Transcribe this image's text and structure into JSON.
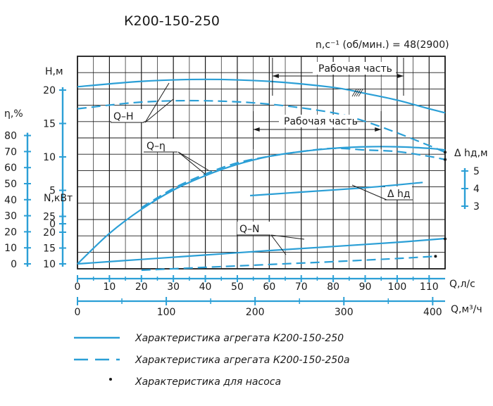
{
  "chart_data": {
    "type": "line",
    "title": "К200-150-250",
    "speed_label": "n,с⁻¹ (об/мин.) = 48(2900)",
    "working_zone_label": "Рабочая часть",
    "x_axis": {
      "label": "Q,л/с",
      "range": [
        0,
        115
      ],
      "ticks": [
        0,
        10,
        20,
        30,
        40,
        50,
        60,
        70,
        80,
        90,
        100,
        110
      ]
    },
    "x2_axis": {
      "label": "Q,м³/ч",
      "range": [
        0,
        414
      ],
      "ticks": [
        0,
        100,
        200,
        300,
        400
      ]
    },
    "axes": {
      "H": {
        "label": "Н,м",
        "ticks": [
          0,
          5,
          10,
          15,
          20
        ]
      },
      "eta": {
        "label": "η,%",
        "ticks": [
          0,
          10,
          20,
          30,
          40,
          50,
          60,
          70,
          80
        ]
      },
      "N": {
        "label": "N,кВт",
        "ticks": [
          10,
          15,
          20,
          25
        ]
      },
      "dh": {
        "label": "Δ hд,м",
        "ticks": [
          3,
          4,
          5
        ]
      }
    },
    "curve_labels": {
      "QH": "Q–H",
      "Qeta": "Q–η",
      "QN": "Q–N",
      "dh": "Δ hд"
    },
    "series": [
      {
        "key": "H_main",
        "axis": "H",
        "style": "solid",
        "x": [
          0,
          20,
          40,
          60,
          80,
          90,
          100,
          110,
          115
        ],
        "y": [
          20.5,
          21.3,
          21.6,
          21.3,
          20.4,
          19.5,
          18.5,
          17.2,
          16.6
        ]
      },
      {
        "key": "H_a",
        "axis": "H",
        "style": "dashed",
        "x": [
          0,
          20,
          40,
          60,
          80,
          90,
          100,
          110,
          115
        ],
        "y": [
          17.2,
          18.2,
          18.4,
          17.9,
          16.6,
          15.3,
          13.6,
          11.7,
          10.7
        ]
      },
      {
        "key": "eta_main",
        "axis": "eta",
        "style": "solid",
        "x": [
          0,
          10,
          20,
          30,
          40,
          50,
          60,
          70,
          80,
          90,
          100,
          110,
          115
        ],
        "y": [
          0,
          19,
          34,
          46,
          55,
          62,
          67,
          70,
          72,
          73,
          73,
          72,
          71
        ]
      },
      {
        "key": "eta_a",
        "axis": "eta",
        "style": "dashed",
        "x": [
          20,
          30,
          40,
          50,
          60,
          70,
          80,
          90,
          100,
          110,
          115
        ],
        "y": [
          35,
          47,
          56,
          63,
          67,
          70,
          72,
          71,
          70,
          67,
          65
        ]
      },
      {
        "key": "N_main",
        "axis": "N",
        "style": "solid",
        "x": [
          0,
          20,
          40,
          60,
          80,
          100,
          115
        ],
        "y": [
          10,
          11.4,
          12.8,
          14.2,
          15.5,
          16.8,
          18.0
        ]
      },
      {
        "key": "N_a",
        "axis": "N",
        "style": "dashed",
        "x": [
          20,
          40,
          60,
          80,
          100,
          112
        ],
        "y": [
          8.0,
          8.9,
          9.8,
          10.7,
          11.7,
          12.4
        ]
      },
      {
        "key": "dh",
        "axis": "dh",
        "style": "solid",
        "x": [
          54,
          70,
          90,
          108
        ],
        "y": [
          3.6,
          3.8,
          4.05,
          4.35
        ]
      }
    ],
    "pump_points": [
      {
        "axis": "H",
        "x": 115,
        "y": 10.7
      },
      {
        "axis": "eta",
        "x": 115,
        "y": 65
      },
      {
        "axis": "N",
        "x": 115,
        "y": 17.9
      },
      {
        "axis": "N",
        "x": 112,
        "y": 12.4
      }
    ],
    "legend": [
      {
        "style": "solid",
        "text": "Характеристика агрегата К200-150-250"
      },
      {
        "style": "dashed",
        "text": "Характеристика агрегата К200-150-250а"
      },
      {
        "style": "dot",
        "text": "Характеристика для насоса"
      }
    ],
    "colors": {
      "curve": "#2b9fd6",
      "grid": "#1a1a1a"
    }
  }
}
